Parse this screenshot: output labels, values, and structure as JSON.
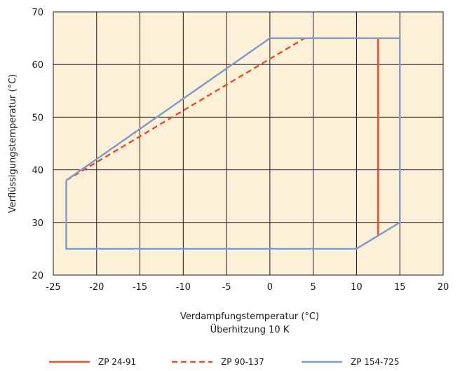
{
  "chart_data": {
    "type": "line",
    "title": "",
    "xlabel": "Verdampfungstemperatur (°C)",
    "xlabel2": "Überhitzung 10 K",
    "ylabel": "Verflüssigungstemperatur (°C)",
    "xlim": [
      -25,
      20
    ],
    "ylim": [
      20,
      70
    ],
    "xticks": [
      -25,
      -20,
      -15,
      -10,
      -5,
      0,
      5,
      10,
      15,
      20
    ],
    "yticks": [
      20,
      30,
      40,
      50,
      60,
      70
    ],
    "grid": true,
    "legend_position": "bottom",
    "plot_background": "#fcf1d8",
    "series": [
      {
        "name": "ZP 24-91",
        "style": "solid",
        "color": "#e8502e",
        "points": [
          [
            12.5,
            65
          ],
          [
            12.5,
            27.5
          ]
        ]
      },
      {
        "name": "ZP 90-137",
        "style": "dashed",
        "color": "#e8502e",
        "points": [
          [
            -23.5,
            38
          ],
          [
            4,
            65
          ]
        ]
      },
      {
        "name": "ZP 154-725",
        "style": "solid",
        "color": "#7d9cc8",
        "points": [
          [
            -23.5,
            38
          ],
          [
            0,
            65
          ],
          [
            15,
            65
          ],
          [
            15,
            30
          ],
          [
            10,
            25
          ],
          [
            -23.5,
            25
          ],
          [
            -23.5,
            38
          ]
        ]
      }
    ]
  }
}
